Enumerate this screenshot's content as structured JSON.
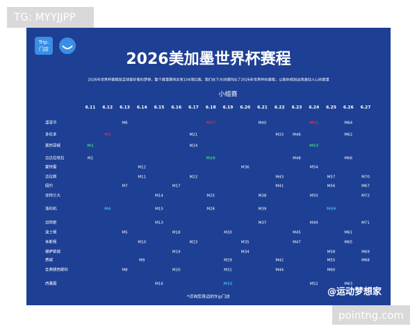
{
  "watermark_top": "TG: MYYJJPP",
  "watermark_bottom": "pointng.com",
  "logo": {
    "brand": "Trip.",
    "store": "门店"
  },
  "header": {
    "title": "2026美加墨世界杯赛程",
    "subtitle": "2026年世界杯赛程是足球爱好者的梦想，整个赛事期间共有104场比赛。我们在下方详细列出了2026年世界杯的赛程，以助你规划这场激动人心的赛事",
    "stage": "小组赛"
  },
  "table": {
    "dates": [
      "6.11",
      "6.12",
      "6.13",
      "6.14",
      "6.15",
      "6.16",
      "6.17",
      "6.18",
      "6.19",
      "6.20",
      "6.21",
      "6.22",
      "6.23",
      "6.24",
      "6.25",
      "6.26",
      "6.27"
    ],
    "rows": [
      {
        "city": "温哥华",
        "cells": [
          null,
          null,
          "M6",
          null,
          null,
          null,
          null,
          {
            "label": "M27",
            "color": "#d0343f"
          },
          null,
          null,
          "M40",
          null,
          null,
          {
            "label": "M51",
            "color": "#d0343f"
          },
          null,
          "M64",
          null
        ]
      },
      {
        "city": "多伦多",
        "cells": [
          null,
          {
            "label": "M3",
            "color": "#d0343f"
          },
          null,
          null,
          null,
          null,
          "M21",
          null,
          null,
          null,
          null,
          "M33",
          "M46",
          null,
          null,
          "M62",
          null
        ]
      },
      {
        "city": "墨西哥城",
        "cells": [
          {
            "label": "M1",
            "color": "#3ec77a"
          },
          null,
          null,
          null,
          null,
          null,
          "M24",
          null,
          null,
          null,
          null,
          null,
          null,
          {
            "label": "M53",
            "color": "#3ec77a"
          },
          null,
          null,
          null
        ]
      },
      {
        "city": "瓜达拉哈拉",
        "cells": [
          "M2",
          null,
          null,
          null,
          null,
          null,
          null,
          {
            "label": "M28",
            "color": "#3ec77a"
          },
          null,
          null,
          null,
          null,
          "M48",
          null,
          null,
          "M66",
          null
        ]
      },
      {
        "city": "蒙特雷",
        "cells": [
          null,
          null,
          null,
          "M12",
          null,
          null,
          null,
          null,
          null,
          "M36",
          null,
          null,
          null,
          "M54",
          null,
          null,
          null
        ]
      },
      {
        "city": "达拉斯",
        "cells": [
          null,
          null,
          null,
          "M11",
          null,
          null,
          "M22",
          null,
          null,
          null,
          null,
          "M43",
          null,
          null,
          "M57",
          null,
          "M70"
        ]
      },
      {
        "city": "纽约",
        "cells": [
          null,
          null,
          "M7",
          null,
          null,
          "M17",
          null,
          null,
          null,
          null,
          null,
          "M41",
          null,
          null,
          "M56",
          null,
          "M67"
        ]
      },
      {
        "city": "亚特兰大",
        "cells": [
          null,
          null,
          null,
          null,
          "M14",
          null,
          null,
          "M25",
          null,
          null,
          "M38",
          null,
          null,
          "M50",
          null,
          null,
          "M72"
        ]
      },
      {
        "city": "洛杉矶",
        "cells": [
          null,
          {
            "label": "M4",
            "color": "#3fa9f5"
          },
          null,
          null,
          "M15",
          null,
          null,
          "M26",
          null,
          null,
          "M39",
          null,
          null,
          null,
          {
            "label": "M59",
            "color": "#3fa9f5"
          },
          null,
          null
        ]
      },
      {
        "city": "迈阿密",
        "cells": [
          null,
          null,
          null,
          null,
          "M13",
          null,
          null,
          null,
          null,
          null,
          "M37",
          null,
          null,
          "M49",
          null,
          null,
          "M71"
        ]
      },
      {
        "city": "波士顿",
        "cells": [
          null,
          null,
          "M5",
          null,
          null,
          "M18",
          null,
          null,
          "M30",
          null,
          null,
          null,
          "M45",
          null,
          null,
          "M61",
          null
        ]
      },
      {
        "city": "休斯顿",
        "cells": [
          null,
          null,
          null,
          "M10",
          null,
          null,
          "M23",
          null,
          null,
          "M35",
          null,
          null,
          "M47",
          null,
          null,
          "M65",
          null
        ]
      },
      {
        "city": "堪萨斯城",
        "cells": [
          null,
          null,
          null,
          null,
          null,
          "M19",
          null,
          null,
          null,
          "M34",
          null,
          null,
          null,
          null,
          "M58",
          null,
          "M69"
        ]
      },
      {
        "city": "费城",
        "cells": [
          null,
          null,
          null,
          "M9",
          null,
          null,
          null,
          null,
          "M29",
          null,
          null,
          "M42",
          null,
          null,
          "M55",
          null,
          "M68"
        ]
      },
      {
        "city": "圣弗朗西斯科",
        "cells": [
          null,
          null,
          "M8",
          null,
          null,
          "M20",
          null,
          null,
          "M31",
          null,
          null,
          "M44",
          null,
          null,
          "M60",
          null,
          null
        ]
      },
      {
        "city": "西雅图",
        "cells": [
          null,
          null,
          null,
          null,
          "M16",
          null,
          null,
          null,
          {
            "label": "M32",
            "color": "#3fa9f5"
          },
          null,
          null,
          null,
          null,
          "M52",
          null,
          "M63",
          null
        ]
      }
    ]
  },
  "footer": "*详询您身边的Trip门店",
  "credit": "@运动梦想家"
}
